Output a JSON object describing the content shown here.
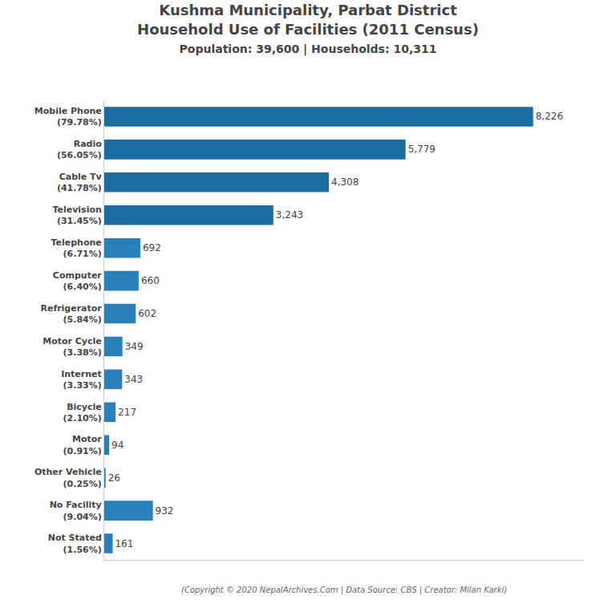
{
  "chart_data": {
    "type": "bar",
    "orientation": "horizontal",
    "title": "Kushma Municipality, Parbat District\nHousehold Use of Facilities (2011 Census)",
    "subtitle": "Population: 39,600 | Households: 10,311",
    "annotations": [
      "(Copyright © 2020 NepalArchives.Com | Data Source: CBS | Creator: Milan Karki)"
    ],
    "categories": [
      "Mobile Phone\n(79.78%)",
      "Radio\n(56.05%)",
      "Cable Tv\n(41.78%)",
      "Television\n(31.45%)",
      "Telephone\n(6.71%)",
      "Computer\n(6.40%)",
      "Refrigerator\n(5.84%)",
      "Motor Cycle\n(3.38%)",
      "Internet\n(3.33%)",
      "Bicycle\n(2.10%)",
      "Motor\n(0.91%)",
      "Other Vehicle\n(0.25%)",
      "No Facility\n(9.04%)",
      "Not Stated\n(1.56%)"
    ],
    "values": [
      8226,
      5779,
      4308,
      3243,
      692,
      660,
      602,
      349,
      343,
      217,
      94,
      26,
      932,
      161
    ],
    "value_labels": [
      "8,226",
      "5,779",
      "4,308",
      "3,243",
      "692",
      "660",
      "602",
      "349",
      "343",
      "217",
      "94",
      "26",
      "932",
      "161"
    ],
    "data_labels": true,
    "colors": [
      "#1A6FA0",
      "#1A6FA0",
      "#1A6FA0",
      "#1A6FA0",
      "#2980B9",
      "#2980B9",
      "#2980B9",
      "#2980B9",
      "#2980B9",
      "#2980B9",
      "#2980B9",
      "#2980B9",
      "#2980B9",
      "#2980B9"
    ],
    "xlim": [
      0,
      9200
    ],
    "tick_labels": "y",
    "grid": false
  }
}
